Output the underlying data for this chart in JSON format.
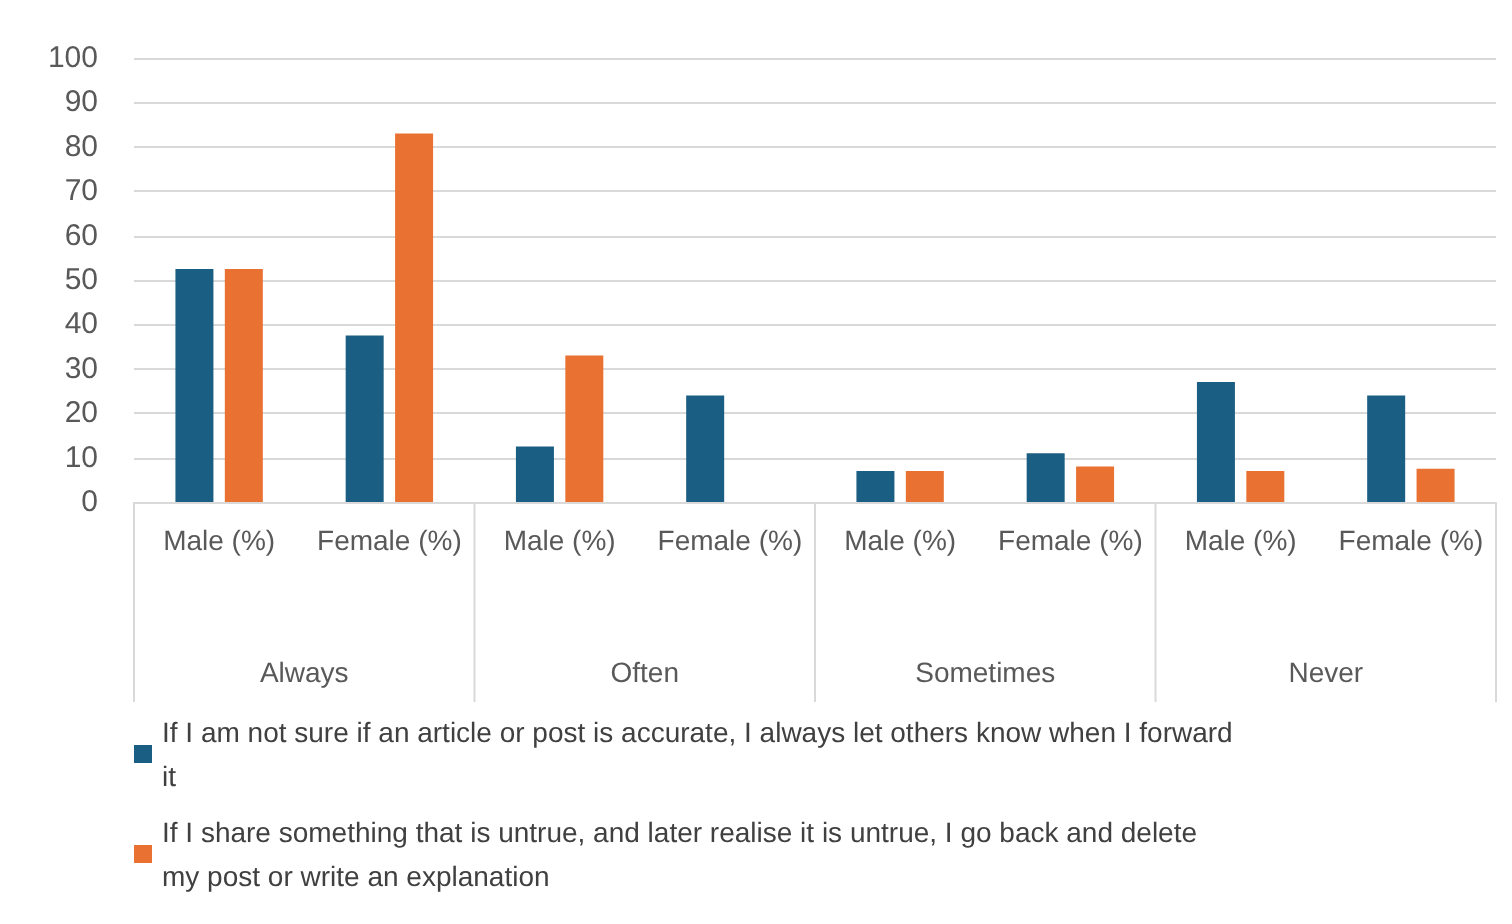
{
  "chart_data": {
    "type": "bar",
    "categories": [
      "Male (%)",
      "Female (%)",
      "Male (%)",
      "Female (%)",
      "Male (%)",
      "Female (%)",
      "Male (%)",
      "Female (%)"
    ],
    "annotations": [
      "Always",
      "Often",
      "Sometimes",
      "Never"
    ],
    "series": [
      {
        "name": "If I am not sure if an article or post is accurate, I always let others know when I forward it",
        "color": "#1b5e83",
        "values": [
          52.5,
          37.5,
          12.5,
          24,
          7,
          11,
          27,
          24
        ]
      },
      {
        "name": "If I share something that is untrue, and later realise it is untrue, I go back and delete my post or write an explanation",
        "color": "#e97132",
        "values": [
          52.5,
          83,
          33,
          0,
          7,
          8,
          7,
          7.5
        ]
      }
    ],
    "ylim": [
      0,
      100
    ],
    "yticks": [
      0,
      10,
      20,
      30,
      40,
      50,
      60,
      70,
      80,
      90,
      100
    ],
    "grid": "y",
    "legend": "bottom"
  }
}
